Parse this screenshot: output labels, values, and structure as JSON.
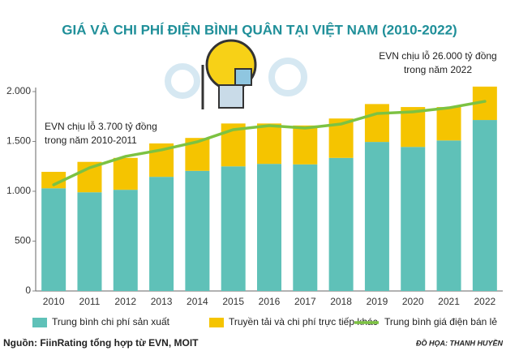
{
  "chart_data": {
    "type": "bar",
    "title": "GIÁ VÀ CHI PHÍ ĐIỆN BÌNH QUÂN TẠI VIỆT NAM (2010-2022)",
    "categories": [
      "2010",
      "2011",
      "2012",
      "2013",
      "2014",
      "2015",
      "2016",
      "2017",
      "2018",
      "2019",
      "2020",
      "2021",
      "2022"
    ],
    "series": [
      {
        "name": "Trung bình chi phí sản xuất",
        "color": "#5fc1b8",
        "values": [
          1030,
          990,
          1015,
          1145,
          1205,
          1250,
          1275,
          1270,
          1335,
          1495,
          1445,
          1510,
          1715
        ]
      },
      {
        "name": "Truyền tải và chi phí trực tiếp khác",
        "color": "#f5c400",
        "values": [
          165,
          305,
          320,
          335,
          330,
          430,
          405,
          390,
          395,
          380,
          400,
          335,
          335
        ]
      },
      {
        "name": "Trung bình giá điện bán lẻ",
        "color": "#7cc242",
        "type": "line",
        "values": [
          1065,
          1236,
          1350,
          1415,
          1496,
          1618,
          1658,
          1634,
          1675,
          1780,
          1797,
          1837,
          1902
        ]
      }
    ],
    "stacked": true,
    "ylim": [
      0,
      2000
    ],
    "yticks": [
      0,
      500,
      {
        "value": 1000,
        "label": "1.000"
      },
      {
        "value": 1500,
        "label": "1.500"
      },
      {
        "value": 2000,
        "label": "2.000"
      }
    ],
    "annotations": [
      {
        "lines": [
          "EVN chịu lỗ  3.700 tỷ đồng",
          "trong năm 2010-2011"
        ]
      },
      {
        "lines": [
          "EVN chịu lỗ  26.000 tỷ đồng",
          "trong năm 2022"
        ]
      }
    ],
    "source": "Nguồn: FiinRating tổng hợp từ EVN, MOIT",
    "credit": "ĐỒ HỌA: THANH HUYỀN"
  }
}
